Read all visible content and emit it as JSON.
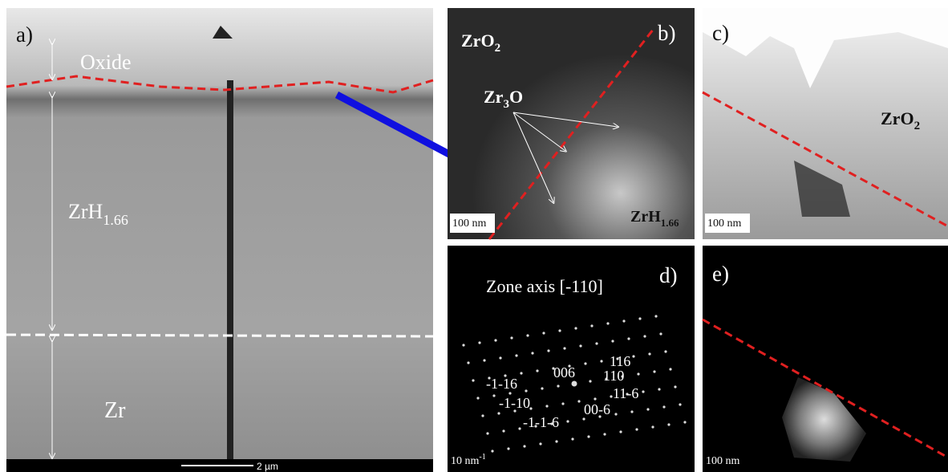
{
  "panels": {
    "a": {
      "label": "a)",
      "oxide": "Oxide",
      "hydride": {
        "base": "ZrH",
        "sub": "1.66"
      },
      "metal": "Zr",
      "scale_bar": "2 µm"
    },
    "b": {
      "label": "b)",
      "oxide": {
        "base": "ZrO",
        "sub": "2"
      },
      "suboxide": {
        "base": "Zr",
        "sub": "3",
        "rest": "O"
      },
      "hydride": {
        "base": "ZrH",
        "sub": "1.66"
      },
      "scale_bar": "100 nm"
    },
    "c": {
      "label": "c)",
      "oxide": {
        "base": "ZrO",
        "sub": "2"
      },
      "scale_bar": "100 nm"
    },
    "d": {
      "label": "d)",
      "zone_axis": "Zone axis [-110]",
      "spots": [
        "006",
        "116",
        "110",
        "11-6",
        "-1-16",
        "-1-10",
        "00-6",
        "-1-1-6"
      ],
      "scale_bar": {
        "base": "10 nm",
        "sup": "-1"
      }
    },
    "e": {
      "label": "e)",
      "scale_bar": "100 nm"
    }
  }
}
